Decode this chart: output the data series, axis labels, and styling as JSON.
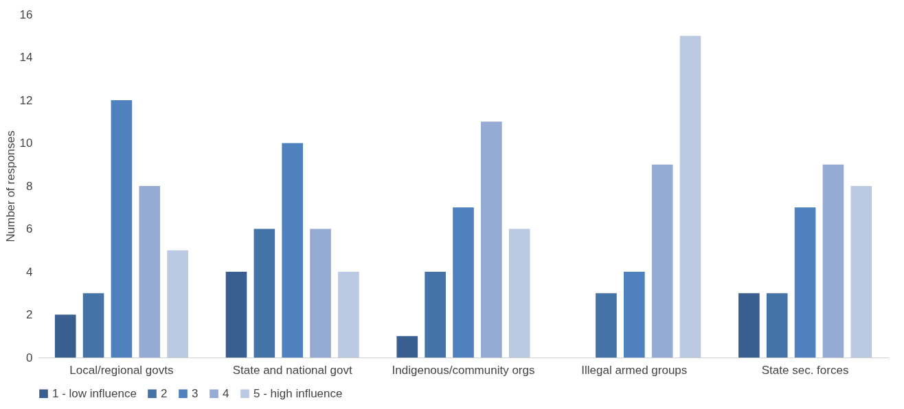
{
  "chart_data": {
    "type": "bar",
    "ylabel": "Number of responses",
    "categories": [
      "Local/regional govts",
      "State and national govt",
      "Indigenous/community orgs",
      "Illegal armed groups",
      "State sec. forces"
    ],
    "series": [
      {
        "name": "1 - low influence",
        "color": "#3a5e8f",
        "values": [
          2,
          4,
          1,
          0,
          3
        ]
      },
      {
        "name": "2",
        "color": "#4572a7",
        "values": [
          3,
          6,
          4,
          3,
          3
        ]
      },
      {
        "name": "3",
        "color": "#4e81bd",
        "values": [
          12,
          10,
          7,
          4,
          7
        ]
      },
      {
        "name": "4",
        "color": "#95abd3",
        "values": [
          8,
          6,
          11,
          9,
          9
        ]
      },
      {
        "name": "5 - high influence",
        "color": "#bcc9e2",
        "values": [
          5,
          4,
          6,
          15,
          8
        ]
      }
    ],
    "ylim": [
      0,
      16
    ],
    "yticks": [
      0,
      2,
      4,
      6,
      8,
      10,
      12,
      14,
      16
    ],
    "grid": false,
    "legend": "bottom"
  }
}
